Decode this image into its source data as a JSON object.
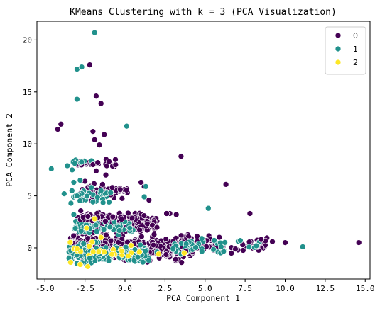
{
  "chart_data": {
    "type": "scatter",
    "title": "KMeans Clustering with k = 3 (PCA Visualization)",
    "xlabel": "PCA Component 1",
    "ylabel": "PCA Component 2",
    "xlim": [
      -5.5,
      15.3
    ],
    "ylim": [
      -3.0,
      21.8
    ],
    "xticks": [
      -5.0,
      -2.5,
      0.0,
      2.5,
      5.0,
      7.5,
      10.0,
      12.5,
      15.0
    ],
    "xtick_labels": [
      "-5.0",
      "-2.5",
      "0.0",
      "2.5",
      "5.0",
      "7.5",
      "10.0",
      "12.5",
      "15.0"
    ],
    "yticks": [
      0,
      5,
      10,
      15,
      20
    ],
    "ytick_labels": [
      "0",
      "5",
      "10",
      "15",
      "20"
    ],
    "grid": false,
    "legend": {
      "placement": "top-right",
      "entries": [
        "0",
        "1",
        "2"
      ]
    },
    "series": [
      {
        "name": "0",
        "color": "#440154",
        "x": [
          -4.2,
          -4.0,
          -2.2,
          -1.8,
          -2.0,
          -1.5,
          -1.3,
          -1.9,
          -1.6,
          -1.0,
          -0.6,
          -2.0,
          -1.7,
          -1.2,
          -1.8,
          -2.5,
          -1.4,
          -0.8,
          -0.3,
          1.0,
          1.5,
          2.8,
          3.2,
          2.6,
          6.3,
          7.8,
          1.2,
          3.5,
          4.5,
          8.5,
          9.2,
          10.0,
          14.6,
          3.8
        ],
        "y": [
          11.4,
          11.9,
          17.6,
          14.6,
          11.2,
          13.9,
          10.9,
          10.4,
          9.9,
          8.3,
          8.5,
          8.0,
          8.2,
          7.0,
          7.4,
          6.4,
          6.1,
          5.8,
          5.6,
          6.3,
          4.6,
          3.3,
          3.2,
          3.3,
          6.1,
          3.3,
          5.9,
          8.8,
          1.1,
          0.8,
          0.6,
          0.5,
          0.5,
          -0.3
        ]
      },
      {
        "name": "1",
        "color": "#21918c",
        "x": [
          -1.9,
          -3.0,
          -3.0,
          -2.7,
          0.1,
          -4.6,
          -3.6,
          -3.3,
          -3.2,
          -2.1,
          -1.5,
          -0.9,
          1.2,
          -3.0,
          -3.8,
          -2.8,
          -1.0,
          1.3,
          5.2,
          7.2,
          11.1,
          8.2,
          -3.2,
          0.3,
          4.8,
          6.0,
          -3.5,
          -3.0,
          -2.2,
          -1.2,
          0.8,
          2.0,
          3.5
        ],
        "y": [
          20.7,
          17.2,
          14.3,
          17.4,
          11.7,
          7.6,
          7.9,
          7.5,
          6.3,
          5.8,
          5.5,
          5.3,
          4.9,
          5.0,
          5.2,
          6.5,
          4.4,
          5.9,
          3.8,
          0.7,
          0.1,
          0.2,
          3.2,
          1.9,
          0.9,
          0.1,
          -1.0,
          -1.5,
          -1.0,
          -0.5,
          -0.9,
          -0.4,
          -0.6
        ]
      },
      {
        "name": "2",
        "color": "#fde725",
        "x": [
          -3.4,
          -2.8,
          -2.4,
          -1.9,
          -1.3,
          -0.2,
          0.9,
          2.1,
          3.7,
          -3.0,
          -1.5,
          0.2
        ],
        "y": [
          -1.4,
          -1.6,
          1.9,
          2.8,
          -0.4,
          -0.3,
          -0.4,
          -0.6,
          -0.5,
          -0.1,
          1.0,
          -0.8
        ]
      }
    ]
  }
}
